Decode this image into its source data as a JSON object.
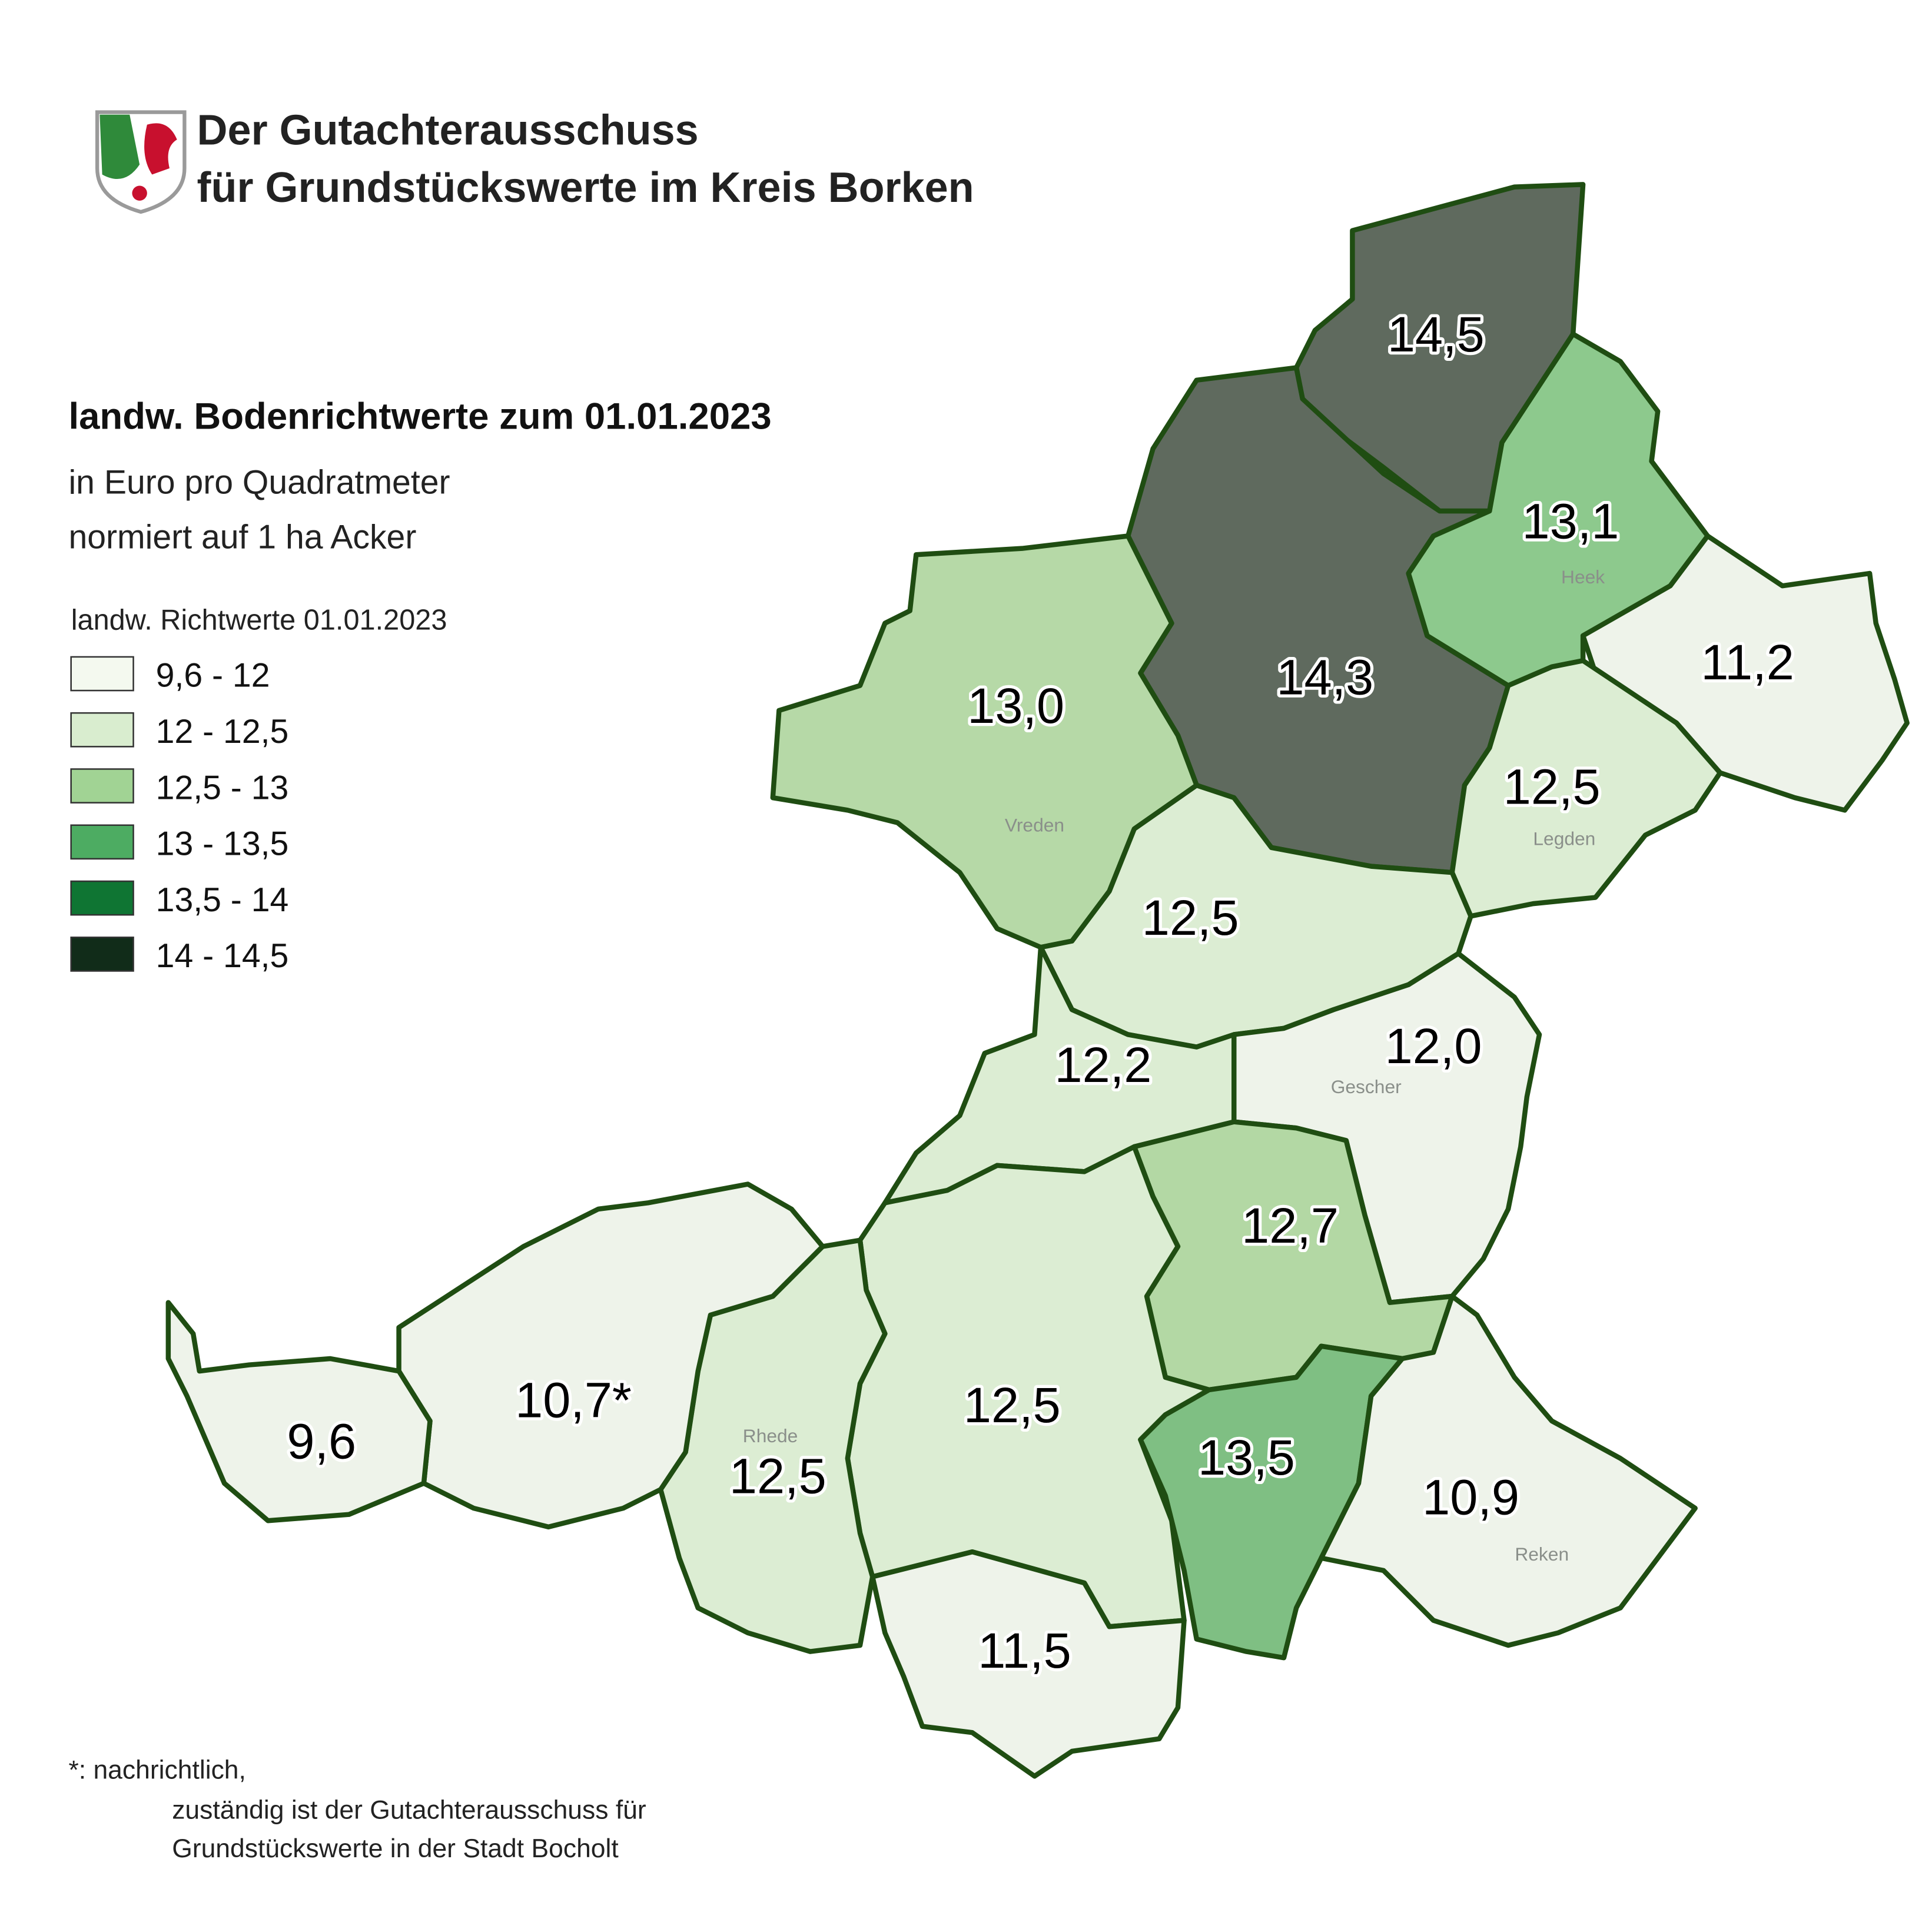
{
  "header": {
    "lines": [
      "Der Gutachterausschuss",
      "für Grundstückswerte im Kreis Borken"
    ]
  },
  "title": "landw. Bodenrichtwerte zum 01.01.2023",
  "subtitle_lines": [
    "in Euro pro Quadratmeter",
    "normiert auf 1 ha Acker"
  ],
  "legend": {
    "title": "landw. Richtwerte 01.01.2023",
    "classes": [
      {
        "label": "9,6 - 12",
        "color": "#f4f9ef"
      },
      {
        "label": "12 - 12,5",
        "color": "#d9edcf"
      },
      {
        "label": "12,5 - 13",
        "color": "#a1d394"
      },
      {
        "label": "13 - 13,5",
        "color": "#4dac62"
      },
      {
        "label": "13,5 - 14",
        "color": "#0f7533"
      },
      {
        "label": "14 - 14,5",
        "color": "#112c19"
      }
    ]
  },
  "regions": [
    {
      "label": "14,5",
      "color": "#5f6a5e"
    },
    {
      "label": "14,3",
      "color": "#5f6a5e"
    },
    {
      "label": "13,1",
      "color": "#8dc98d"
    },
    {
      "label": "11,2",
      "color": "#eef3ea"
    },
    {
      "label": "12,5",
      "color": "#dcedd3"
    },
    {
      "label": "13,0",
      "color": "#b6d9a7"
    },
    {
      "label": "12,5",
      "color": "#dcedd3"
    },
    {
      "label": "12,0",
      "color": "#eef3ea"
    },
    {
      "label": "12,2",
      "color": "#dcedd3"
    },
    {
      "label": "12,7",
      "color": "#b3d8a4"
    },
    {
      "label": "12,5",
      "color": "#dcedd3"
    },
    {
      "label": "12,5",
      "color": "#dcedd3"
    },
    {
      "label": "10,7*",
      "color": "#eef3ea"
    },
    {
      "label": "9,6",
      "color": "#eef3ea"
    },
    {
      "label": "11,5",
      "color": "#eef3ea"
    },
    {
      "label": "13,5",
      "color": "#7fbf83"
    },
    {
      "label": "10,9",
      "color": "#eef3ea"
    }
  ],
  "places": [
    "Heek",
    "Vreden",
    "Legden",
    "Gescher",
    "Rhede",
    "Reken"
  ],
  "footnote": {
    "lines": [
      "*: nachrichtlich,",
      "zuständig ist der Gutachterausschuss für",
      "Grundstückswerte in der Stadt Bocholt"
    ]
  }
}
